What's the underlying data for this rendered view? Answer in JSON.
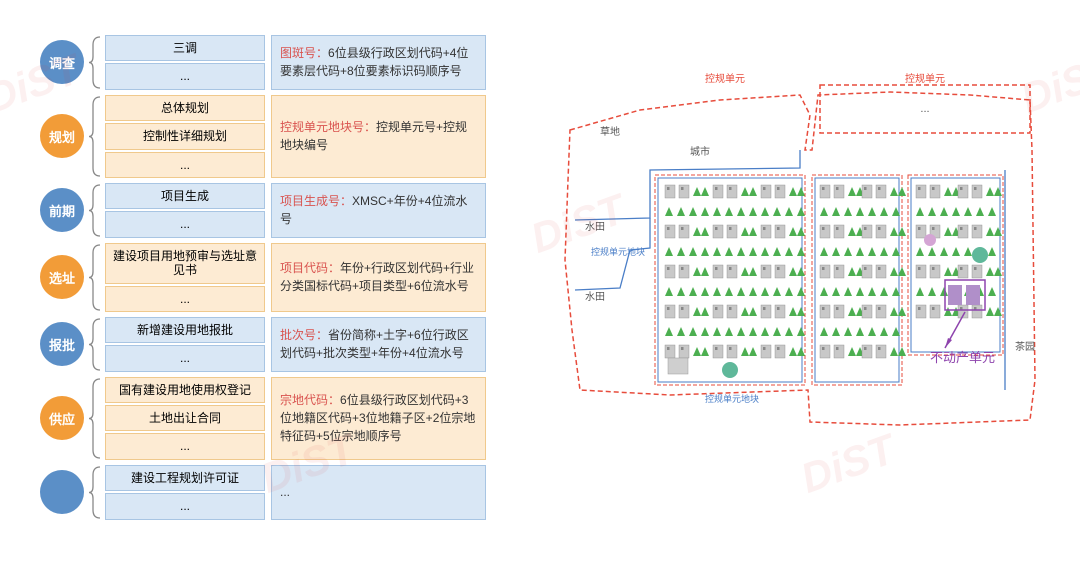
{
  "colors": {
    "blue_circle": "#5b8fc7",
    "orange_circle": "#f29c38",
    "light_blue_bg": "#d9e7f5",
    "light_blue_border": "#a8c5e3",
    "light_orange_bg": "#fdebd3",
    "light_orange_border": "#f0c98c",
    "red_text": "#d9534f",
    "black_text": "#333333",
    "watermark": "rgba(220,60,60,0.08)"
  },
  "rows": [
    {
      "circle": {
        "label": "调查",
        "color": "#5b8fc7"
      },
      "mid_bg": "#d9e7f5",
      "mid_border": "#a8c5e3",
      "right_bg": "#d9e7f5",
      "right_border": "#a8c5e3",
      "mid_items": [
        "三调",
        "..."
      ],
      "right_label": "图斑号：",
      "right_text": "6位县级行政区划代码+4位要素层代码+8位要素标识码顺序号"
    },
    {
      "circle": {
        "label": "规划",
        "color": "#f29c38"
      },
      "mid_bg": "#fdebd3",
      "mid_border": "#f0c98c",
      "right_bg": "#fdebd3",
      "right_border": "#f0c98c",
      "mid_items": [
        "总体规划",
        "控制性详细规划",
        "..."
      ],
      "right_label": "控规单元地块号：",
      "right_text": "控规单元号+控规地块编号"
    },
    {
      "circle": {
        "label": "前期",
        "color": "#5b8fc7"
      },
      "mid_bg": "#d9e7f5",
      "mid_border": "#a8c5e3",
      "right_bg": "#d9e7f5",
      "right_border": "#a8c5e3",
      "mid_items": [
        "项目生成",
        "..."
      ],
      "right_label": "项目生成号：",
      "right_text": "XMSC+年份+4位流水号"
    },
    {
      "circle": {
        "label": "选址",
        "color": "#f29c38"
      },
      "mid_bg": "#fdebd3",
      "mid_border": "#f0c98c",
      "right_bg": "#fdebd3",
      "right_border": "#f0c98c",
      "mid_items": [
        "建设项目用地预审与选址意见书",
        "..."
      ],
      "right_label": "项目代码：",
      "right_text": "年份+行政区划代码+行业分类国标代码+项目类型+6位流水号"
    },
    {
      "circle": {
        "label": "报批",
        "color": "#5b8fc7"
      },
      "mid_bg": "#d9e7f5",
      "mid_border": "#a8c5e3",
      "right_bg": "#d9e7f5",
      "right_border": "#a8c5e3",
      "mid_items": [
        "新增建设用地报批",
        "..."
      ],
      "right_label": "批次号：",
      "right_text": "省份简称+土字+6位行政区划代码+批次类型+年份+4位流水号"
    },
    {
      "circle": {
        "label": "供应",
        "color": "#f29c38"
      },
      "mid_bg": "#fdebd3",
      "mid_border": "#f0c98c",
      "right_bg": "#fdebd3",
      "right_border": "#f0c98c",
      "mid_items": [
        "国有建设用地使用权登记",
        "土地出让合同",
        "..."
      ],
      "right_label": "宗地代码：",
      "right_text": "6位县级行政区划代码+3位地籍区代码+3位地籍子区+2位宗地特征码+5位宗地顺序号"
    },
    {
      "circle": {
        "label": "",
        "color": "#5b8fc7"
      },
      "mid_bg": "#d9e7f5",
      "mid_border": "#a8c5e3",
      "right_bg": "#d9e7f5",
      "right_border": "#a8c5e3",
      "mid_items": [
        "建设工程规划许可证",
        "..."
      ],
      "right_label": "",
      "right_text": "..."
    }
  ],
  "map": {
    "top_labels": {
      "left": "控规单元",
      "right": "控规单元"
    },
    "land_labels": [
      "草地",
      "城市",
      "水田",
      "水田",
      "茶园"
    ],
    "block_label_left": "控规单元地块",
    "block_label_bottom": "控规单元地块",
    "prop_unit_label": "不动产单元",
    "colors": {
      "red_dash": "#e74c3c",
      "blue_line": "#4a7ec7",
      "purple": "#8e44ad",
      "pink_dash": "#e74c3c",
      "green_tree": "#4caf50",
      "building_gray": "#bdc3c7",
      "bg": "#ffffff"
    }
  },
  "watermarks": [
    "DiST",
    "DiST",
    "DiST",
    "DiST",
    "DiST",
    "DiST"
  ]
}
